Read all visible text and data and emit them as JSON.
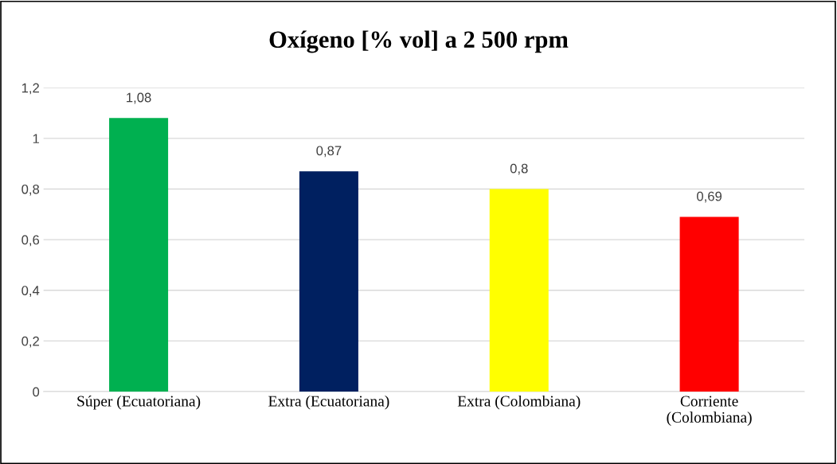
{
  "chart_data": {
    "type": "bar",
    "title": "Oxígeno [% vol] a 2 500 rpm",
    "categories": [
      "Súper (Ecuatoriana)",
      "Extra (Ecuatoriana)",
      "Extra (Colombiana)",
      "Corriente\n(Colombiana)"
    ],
    "values": [
      1.08,
      0.87,
      0.8,
      0.69
    ],
    "colors": [
      "#00b050",
      "#002060",
      "#ffff00",
      "#ff0000"
    ],
    "value_labels": [
      "1,08",
      "0,87",
      "0,8",
      "0,69"
    ],
    "ylim": [
      0,
      1.2
    ],
    "yticks": [
      0,
      {
        "value": 0.2,
        "label": "0,2"
      },
      {
        "value": 0.4,
        "label": "0,4"
      },
      {
        "value": 0.6,
        "label": "0,6"
      },
      {
        "value": 0.8,
        "label": "0,8"
      },
      1,
      {
        "value": 1.2,
        "label": "1,2"
      }
    ],
    "grid": "y",
    "legend": false
  }
}
